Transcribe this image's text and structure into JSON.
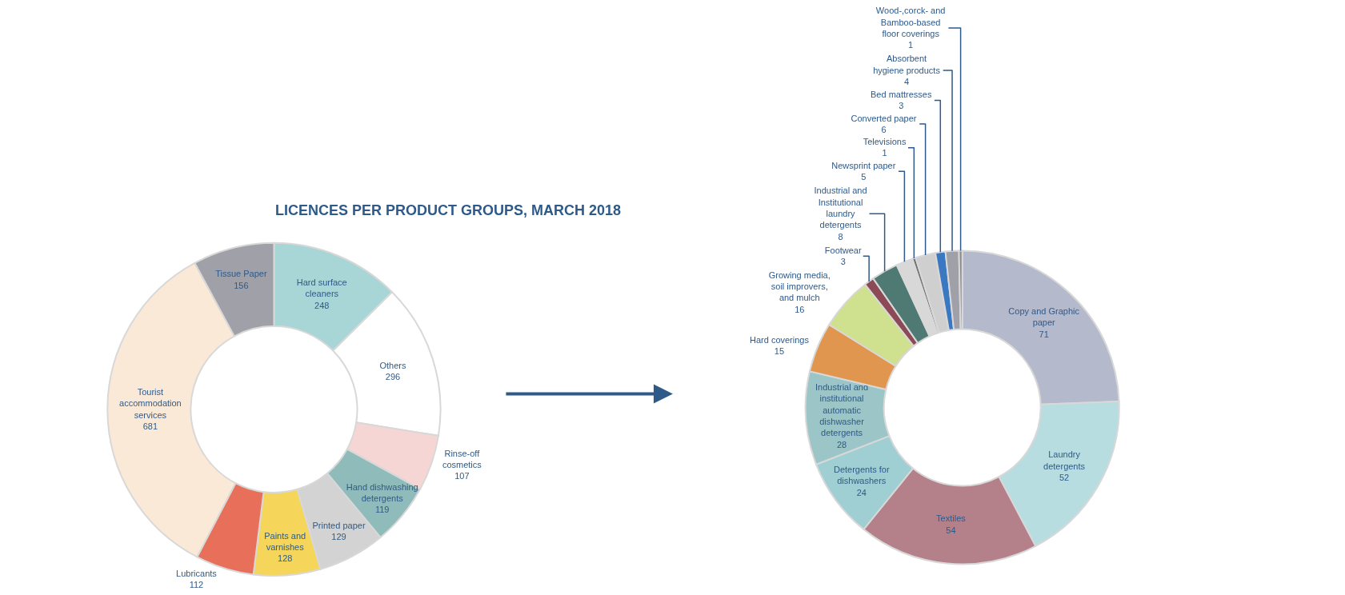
{
  "chart_data": [
    {
      "type": "donut",
      "title": "LICENCES PER PRODUCT GROUPS, MARCH 2018",
      "data_labels": true,
      "categories": [
        "Hard surface cleaners",
        "Others",
        "Rinse-off cosmetics",
        "Hand dishwashing detergents",
        "Printed paper",
        "Paints and varnishes",
        "Lubricants",
        "Tourist accommodation services",
        "Tissue Paper"
      ],
      "values": [
        248,
        296,
        107,
        119,
        129,
        128,
        112,
        681,
        156
      ],
      "colors": [
        "#a8d5d5",
        "#ffffff",
        "#f6d6d4",
        "#8fbcbb",
        "#d3d3d3",
        "#f5d65a",
        "#e8705a",
        "#fbe9d7",
        "#a0a0a8"
      ]
    },
    {
      "type": "donut",
      "data_labels": true,
      "categories": [
        "Copy and Graphic paper",
        "Laundry detergents",
        "Textiles",
        "Detergents for dishwashers",
        "Industrial and institutional automatic dishwasher detergents",
        "Hard coverings",
        "Growing media, soil improvers, and mulch",
        "Footwear",
        "Industrial and Institutional laundry detergents",
        "Newsprint paper",
        "Televisions",
        "Converted paper",
        "Bed mattresses",
        "Absorbent hygiene products",
        "Wood-,corck- and Bamboo-based floor coverings"
      ],
      "values": [
        71,
        52,
        54,
        24,
        28,
        15,
        16,
        3,
        8,
        5,
        1,
        6,
        3,
        4,
        1
      ],
      "colors": [
        "#b5b9cc",
        "#b7dde0",
        "#b4808a",
        "#9fcfd3",
        "#9cc5c7",
        "#e0964e",
        "#cfe08f",
        "#8b4a55",
        "#4f7a73",
        "#d8d8d8",
        "#707070",
        "#cfcfcf",
        "#3a78c2",
        "#a0a0a8",
        "#8c8c8c"
      ]
    }
  ]
}
